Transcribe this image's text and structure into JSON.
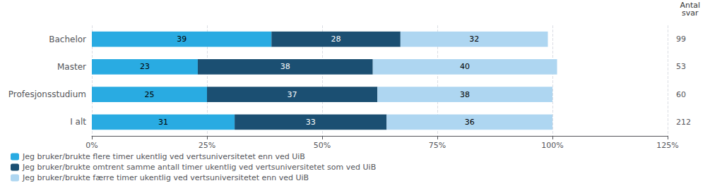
{
  "chart_data": {
    "type": "bar",
    "orientation": "horizontal",
    "stacked": true,
    "data_labels": true,
    "grid": true,
    "legend": "bottom",
    "categories": [
      "Bachelor",
      "Master",
      "Profesjonsstudium",
      "I alt"
    ],
    "series": [
      {
        "name": "Jeg bruker/brukte flere timer ukentlig ved vertsuniversitetet enn ved UiB",
        "color": "#29ABE2",
        "values": [
          39,
          23,
          25,
          31
        ]
      },
      {
        "name": "Jeg bruker/brukte omtrent samme antall timer ukentlig ved vertsuniversitetet som ved UiB",
        "color": "#1B4F72",
        "values": [
          28,
          38,
          37,
          33
        ]
      },
      {
        "name": "Jeg bruker/brukte færre timer ukentlig ved vertsuniversitetet enn ved UiB",
        "color": "#AED6F1",
        "values": [
          32,
          40,
          38,
          36
        ]
      }
    ],
    "n_label": "Antal\nsvar",
    "n_values": [
      99,
      53,
      60,
      212
    ],
    "xlim": [
      0,
      125
    ],
    "xticks": [
      {
        "value": 0,
        "label": "0%"
      },
      {
        "value": 25,
        "label": "25%"
      },
      {
        "value": 50,
        "label": "50%"
      },
      {
        "value": 75,
        "label": "75%"
      },
      {
        "value": 100,
        "label": "100%"
      },
      {
        "value": 125,
        "label": "125%"
      }
    ]
  }
}
